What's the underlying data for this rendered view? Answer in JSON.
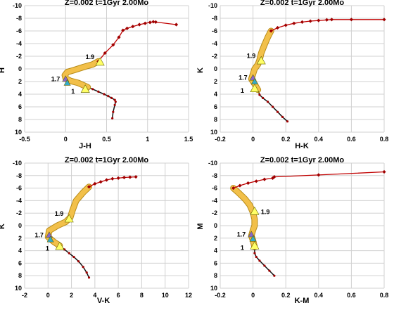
{
  "colors": {
    "red": "#c00000",
    "red_marker": "#a00000",
    "tube": "#f2c04a",
    "tube_edge": "#b08000",
    "low_tail": "#111111",
    "tri_yellow": "#ffff66",
    "tri_violet": "#8866cc",
    "tri_cyan": "#33aacc",
    "grid": "#d0d0d0"
  },
  "chart_data": [
    {
      "type": "line",
      "title": "Z=0.002  t=1Gyr  2.00Mo",
      "xlabel": "J-H",
      "ylabel": "H",
      "xlim": [
        -0.5,
        1.5
      ],
      "ylim": [
        10,
        -10
      ],
      "xticks": [
        -0.5,
        0,
        0.5,
        1,
        1.5
      ],
      "xtick_labels": [
        "-0.5",
        "0",
        "0.5",
        "1",
        "1.5"
      ],
      "yticks": [
        -10,
        -8,
        -6,
        -4,
        -2,
        0,
        2,
        4,
        6,
        8,
        10
      ],
      "grid": true,
      "series": [
        {
          "role": "lower",
          "x": [
            0.57,
            0.58,
            0.6,
            0.61,
            0.6,
            0.56,
            0.52,
            0.47,
            0.4,
            0.33,
            0.27
          ],
          "y": [
            7.8,
            6.8,
            5.7,
            5.2,
            4.9,
            4.6,
            4.3,
            4.0,
            3.6,
            3.2,
            2.9
          ]
        },
        {
          "role": "middle",
          "x": [
            0.27,
            0.22,
            0.15,
            0.06,
            0.0,
            -0.01,
            0.02,
            0.1,
            0.22,
            0.33,
            0.4
          ],
          "y": [
            2.9,
            2.6,
            2.2,
            1.9,
            1.5,
            1.0,
            0.5,
            0.2,
            -0.3,
            -0.7,
            -1.2
          ]
        },
        {
          "role": "upper",
          "x": [
            0.4,
            0.48,
            0.58,
            0.65,
            0.7,
            0.75,
            0.82,
            0.9,
            0.97,
            1.03,
            1.07,
            1.1,
            1.35
          ],
          "y": [
            -1.2,
            -2.5,
            -3.8,
            -5.0,
            -6.1,
            -6.4,
            -6.7,
            -7.0,
            -7.2,
            -7.35,
            -7.45,
            -7.4,
            -7.0
          ]
        }
      ],
      "markers": [
        {
          "label": "1.9",
          "x": 0.42,
          "y": -1.1,
          "color": "yellow"
        },
        {
          "label": "1.7",
          "x": 0.0,
          "y": 1.6,
          "color": "violet"
        },
        {
          "label": "",
          "x": 0.02,
          "y": 2.2,
          "color": "cyan"
        },
        {
          "label": "1",
          "x": 0.24,
          "y": 3.2,
          "color": "yellow"
        }
      ]
    },
    {
      "type": "line",
      "title": "Z=0.002  t=1Gyr  2.00Mo",
      "xlabel": "H-K",
      "ylabel": "K",
      "xlim": [
        -0.2,
        0.8
      ],
      "ylim": [
        10,
        -10
      ],
      "xticks": [
        -0.2,
        0,
        0.2,
        0.4,
        0.6,
        0.8
      ],
      "xtick_labels": [
        "-0.2",
        "0",
        "0.2",
        "0.4",
        "0.6",
        "0.8"
      ],
      "yticks": [
        -10,
        -8,
        -6,
        -4,
        -2,
        0,
        2,
        4,
        6,
        8,
        10
      ],
      "grid": true,
      "series": [
        {
          "role": "lower",
          "x": [
            0.21,
            0.18,
            0.15,
            0.12,
            0.09,
            0.06,
            0.04,
            0.03
          ],
          "y": [
            8.3,
            7.6,
            6.8,
            6.0,
            5.2,
            4.6,
            4.1,
            3.3
          ]
        },
        {
          "role": "middle",
          "x": [
            0.03,
            0.01,
            -0.01,
            0.0,
            0.01,
            0.03,
            0.04,
            0.05,
            0.07,
            0.09,
            0.11
          ],
          "y": [
            3.3,
            2.4,
            1.6,
            0.8,
            0.0,
            -0.7,
            -1.4,
            -2.5,
            -3.8,
            -5.0,
            -6.0
          ]
        },
        {
          "role": "upper",
          "x": [
            0.11,
            0.15,
            0.2,
            0.25,
            0.3,
            0.35,
            0.4,
            0.45,
            0.48,
            0.6,
            0.8
          ],
          "y": [
            -6.0,
            -6.5,
            -6.9,
            -7.2,
            -7.4,
            -7.55,
            -7.65,
            -7.75,
            -7.8,
            -7.8,
            -7.8
          ]
        }
      ],
      "markers": [
        {
          "label": "1.9",
          "x": 0.05,
          "y": -1.3,
          "color": "yellow"
        },
        {
          "label": "1.7",
          "x": 0.0,
          "y": 1.4,
          "color": "violet"
        },
        {
          "label": "",
          "x": 0.01,
          "y": 2.0,
          "color": "cyan"
        },
        {
          "label": "1",
          "x": 0.01,
          "y": 3.1,
          "color": "yellow"
        }
      ]
    },
    {
      "type": "line",
      "title": "Z=0.002  t=1Gyr  2.00Mo",
      "xlabel": "V-K",
      "ylabel": "K",
      "xlim": [
        -2,
        12
      ],
      "ylim": [
        10,
        -10
      ],
      "xticks": [
        -2,
        0,
        2,
        4,
        6,
        8,
        10,
        12
      ],
      "xtick_labels": [
        "-2",
        "0",
        "2",
        "4",
        "6",
        "8",
        "10",
        "12"
      ],
      "yticks": [
        -10,
        -8,
        -6,
        -4,
        -2,
        0,
        2,
        4,
        6,
        8,
        10
      ],
      "grid": true,
      "series": [
        {
          "role": "lower",
          "x": [
            3.5,
            3.3,
            3.0,
            2.6,
            2.2,
            1.8,
            1.4,
            1.0
          ],
          "y": [
            8.3,
            7.5,
            6.6,
            5.7,
            5.0,
            4.4,
            3.8,
            3.2
          ]
        },
        {
          "role": "middle",
          "x": [
            1.0,
            0.5,
            0.0,
            0.1,
            0.8,
            1.5,
            1.9,
            2.1,
            2.4,
            3.0,
            3.5
          ],
          "y": [
            3.2,
            2.6,
            1.8,
            0.8,
            0.0,
            -0.6,
            -1.3,
            -2.5,
            -4.0,
            -5.3,
            -6.2
          ]
        },
        {
          "role": "upper",
          "x": [
            3.5,
            4.0,
            4.5,
            5.0,
            5.5,
            6.0,
            6.5,
            7.0,
            7.5
          ],
          "y": [
            -6.2,
            -6.7,
            -7.0,
            -7.3,
            -7.5,
            -7.6,
            -7.7,
            -7.75,
            -7.8
          ]
        }
      ],
      "markers": [
        {
          "label": "1.9",
          "x": 1.8,
          "y": -1.1,
          "color": "yellow"
        },
        {
          "label": "1.7",
          "x": 0.1,
          "y": 1.5,
          "color": "violet"
        },
        {
          "label": "",
          "x": 0.2,
          "y": 2.2,
          "color": "cyan"
        },
        {
          "label": "1",
          "x": 1.0,
          "y": 3.3,
          "color": "yellow"
        }
      ]
    },
    {
      "type": "line",
      "title": "Z=0.002  t=1Gyr  2.00Mo",
      "xlabel": "K-M",
      "ylabel": "M",
      "xlim": [
        -0.2,
        0.8
      ],
      "ylim": [
        10,
        -10
      ],
      "xticks": [
        -0.2,
        0,
        0.2,
        0.4,
        0.6,
        0.8
      ],
      "xtick_labels": [
        "-0.2",
        "0",
        "0.2",
        "0.4",
        "0.6",
        "0.8"
      ],
      "yticks": [
        -10,
        -8,
        -6,
        -4,
        -2,
        0,
        2,
        4,
        6,
        8,
        10
      ],
      "grid": true,
      "series": [
        {
          "role": "lower",
          "x": [
            0.13,
            0.1,
            0.07,
            0.04,
            0.02,
            0.01,
            0.01
          ],
          "y": [
            8.0,
            7.2,
            6.4,
            5.6,
            5.0,
            4.4,
            3.4
          ]
        },
        {
          "role": "middle",
          "x": [
            0.01,
            0.0,
            -0.01,
            0.0,
            0.01,
            0.01,
            0.0,
            -0.02,
            -0.05,
            -0.09,
            -0.12
          ],
          "y": [
            3.4,
            2.4,
            1.6,
            0.7,
            0.0,
            -1.0,
            -2.1,
            -3.3,
            -4.3,
            -5.3,
            -6.0
          ]
        },
        {
          "role": "upper",
          "x": [
            -0.12,
            -0.08,
            -0.03,
            0.02,
            0.07,
            0.12,
            0.13,
            0.4,
            0.8
          ],
          "y": [
            -6.0,
            -6.4,
            -6.8,
            -7.1,
            -7.4,
            -7.6,
            -7.8,
            -8.1,
            -8.6
          ]
        }
      ],
      "markers": [
        {
          "label": "1.9",
          "x": 0.01,
          "y": -2.3,
          "color": "yellow"
        },
        {
          "label": "1.7",
          "x": -0.01,
          "y": 1.4,
          "color": "violet"
        },
        {
          "label": "",
          "x": 0.0,
          "y": 2.1,
          "color": "cyan"
        },
        {
          "label": "1",
          "x": 0.01,
          "y": 3.2,
          "color": "yellow"
        }
      ]
    }
  ]
}
